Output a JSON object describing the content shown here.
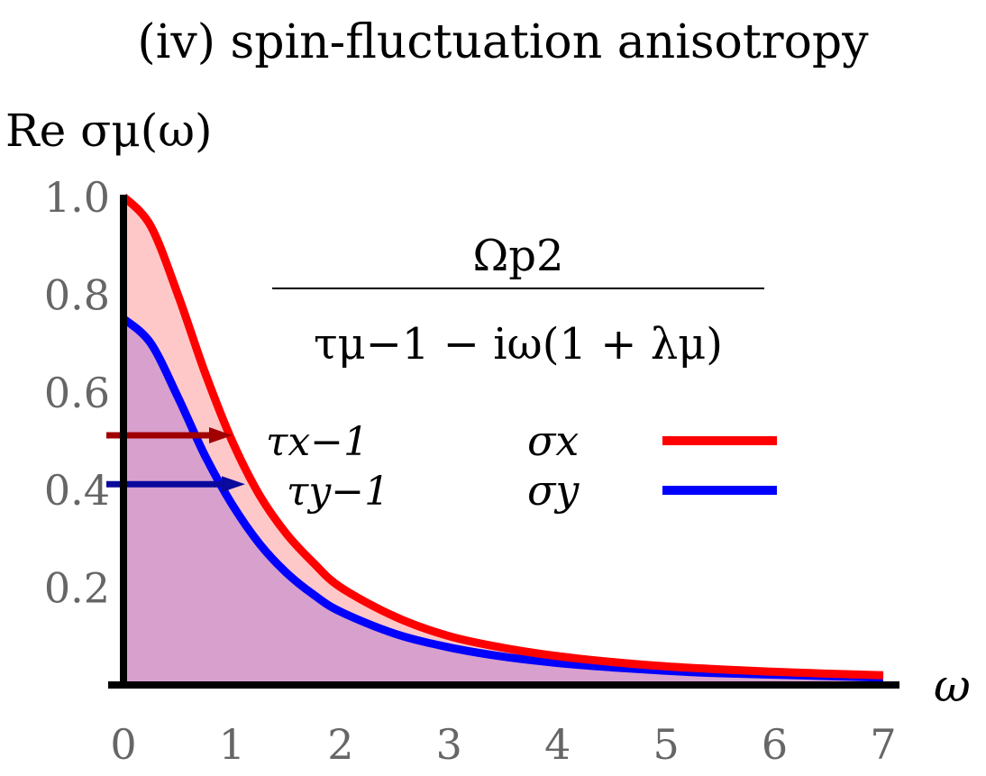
{
  "chart_data": {
    "type": "area",
    "title": "(iv) spin-fluctuation anisotropy",
    "ylabel": "Re σμ(ω)",
    "xlabel": "ω",
    "xlim": [
      0,
      7
    ],
    "ylim": [
      0,
      1.0
    ],
    "x_ticks": [
      "0",
      "1",
      "2",
      "3",
      "4",
      "5",
      "6",
      "7"
    ],
    "y_ticks": [
      "0.2",
      "0.4",
      "0.6",
      "0.8",
      "1.0"
    ],
    "grid": false,
    "legend_placement": "right",
    "formula": {
      "numerator": "Ωp2",
      "denominator": "τμ−1 − iω(1 + λμ)"
    },
    "annotations": [
      {
        "text": "τx−1",
        "y": 0.5,
        "color": "#a00000"
      },
      {
        "text": "τy−1",
        "y": 0.4,
        "color": "#0a0a9c"
      }
    ],
    "series": [
      {
        "name": "σx",
        "color": "#ff0000",
        "fill": "#ffc8c8",
        "x": [
          0,
          0.25,
          0.5,
          0.75,
          1.0,
          1.25,
          1.5,
          1.75,
          2.0,
          2.5,
          3.0,
          3.5,
          4.0,
          4.5,
          5.0,
          5.5,
          6.0,
          6.5,
          7.0
        ],
        "values": [
          1.0,
          0.94,
          0.8,
          0.64,
          0.5,
          0.39,
          0.31,
          0.25,
          0.2,
          0.14,
          0.1,
          0.076,
          0.059,
          0.047,
          0.038,
          0.032,
          0.027,
          0.023,
          0.02
        ]
      },
      {
        "name": "σy",
        "color": "#0000ff",
        "fill": "#d8a0cc",
        "x": [
          0,
          0.25,
          0.5,
          0.75,
          1.0,
          1.25,
          1.5,
          1.75,
          2.0,
          2.5,
          3.0,
          3.5,
          4.0,
          4.5,
          5.0,
          5.5,
          6.0,
          6.5,
          7.0
        ],
        "values": [
          0.75,
          0.7,
          0.59,
          0.47,
          0.37,
          0.29,
          0.23,
          0.185,
          0.15,
          0.105,
          0.077,
          0.058,
          0.045,
          0.036,
          0.029,
          0.024,
          0.021,
          0.018,
          0.015
        ]
      }
    ]
  }
}
